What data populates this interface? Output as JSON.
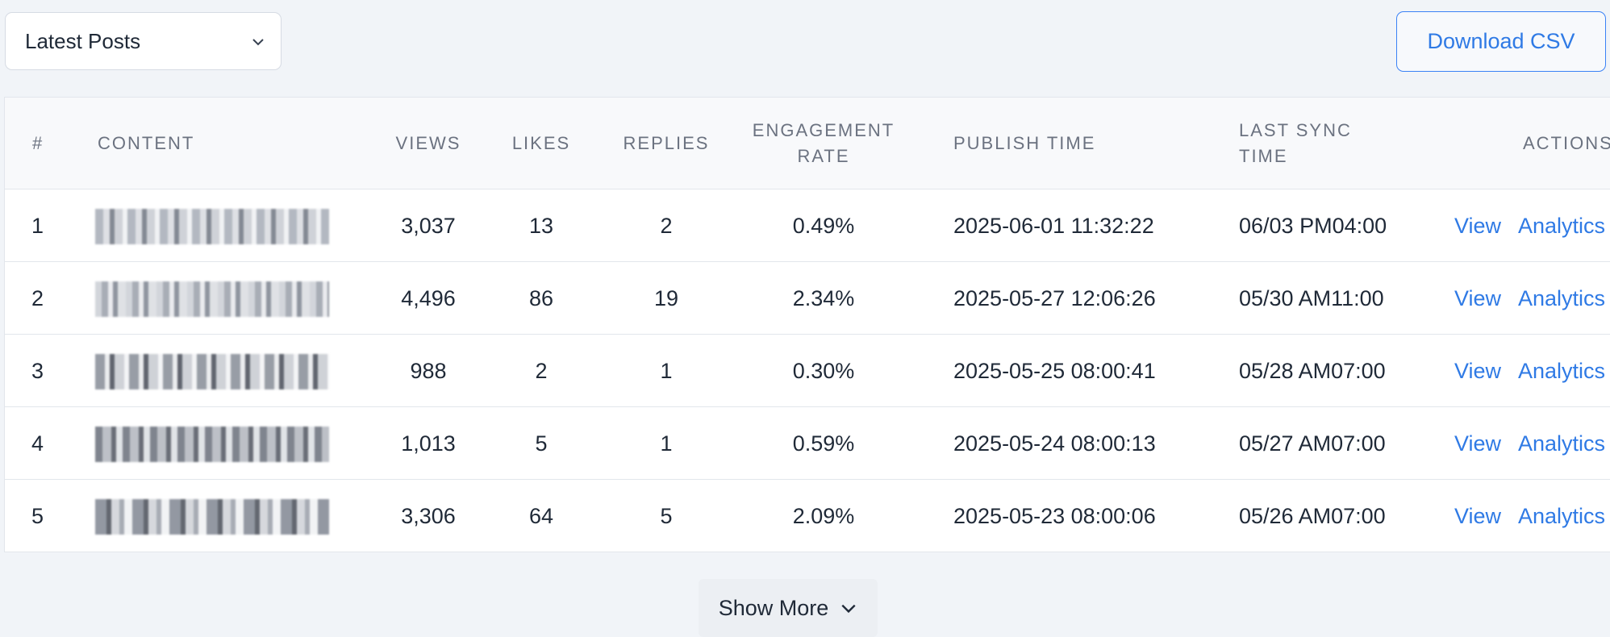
{
  "filter": {
    "selected": "Latest Posts",
    "icon": "chevron-down-icon"
  },
  "toolbar": {
    "download_label": "Download CSV"
  },
  "table": {
    "headers": {
      "index": "#",
      "content": "CONTENT",
      "views": "VIEWS",
      "likes": "LIKES",
      "replies": "REPLIES",
      "engagement_line1": "ENGAGEMENT",
      "engagement_line2": "RATE",
      "publish": "PUBLISH TIME",
      "sync_line1": "LAST SYNC",
      "sync_line2": "TIME",
      "actions": "ACTIONS"
    },
    "rows": [
      {
        "index": "1",
        "views": "3,037",
        "likes": "13",
        "replies": "2",
        "engagement": "0.49%",
        "publish": "2025-06-01 11:32:22",
        "sync": "06/03 PM04:00",
        "view": "View",
        "analytics": "Analytics"
      },
      {
        "index": "2",
        "views": "4,496",
        "likes": "86",
        "replies": "19",
        "engagement": "2.34%",
        "publish": "2025-05-27 12:06:26",
        "sync": "05/30 AM11:00",
        "view": "View",
        "analytics": "Analytics"
      },
      {
        "index": "3",
        "views": "988",
        "likes": "2",
        "replies": "1",
        "engagement": "0.30%",
        "publish": "2025-05-25 08:00:41",
        "sync": "05/28 AM07:00",
        "view": "View",
        "analytics": "Analytics"
      },
      {
        "index": "4",
        "views": "1,013",
        "likes": "5",
        "replies": "1",
        "engagement": "0.59%",
        "publish": "2025-05-24 08:00:13",
        "sync": "05/27 AM07:00",
        "view": "View",
        "analytics": "Analytics"
      },
      {
        "index": "5",
        "views": "3,306",
        "likes": "64",
        "replies": "5",
        "engagement": "2.09%",
        "publish": "2025-05-23 08:00:06",
        "sync": "05/26 AM07:00",
        "view": "View",
        "analytics": "Analytics"
      }
    ]
  },
  "pagination": {
    "show_more_label": "Show More"
  },
  "colors": {
    "accent": "#2f7ae5",
    "background": "#f1f4f8",
    "header_bg": "#f8f9fb"
  }
}
